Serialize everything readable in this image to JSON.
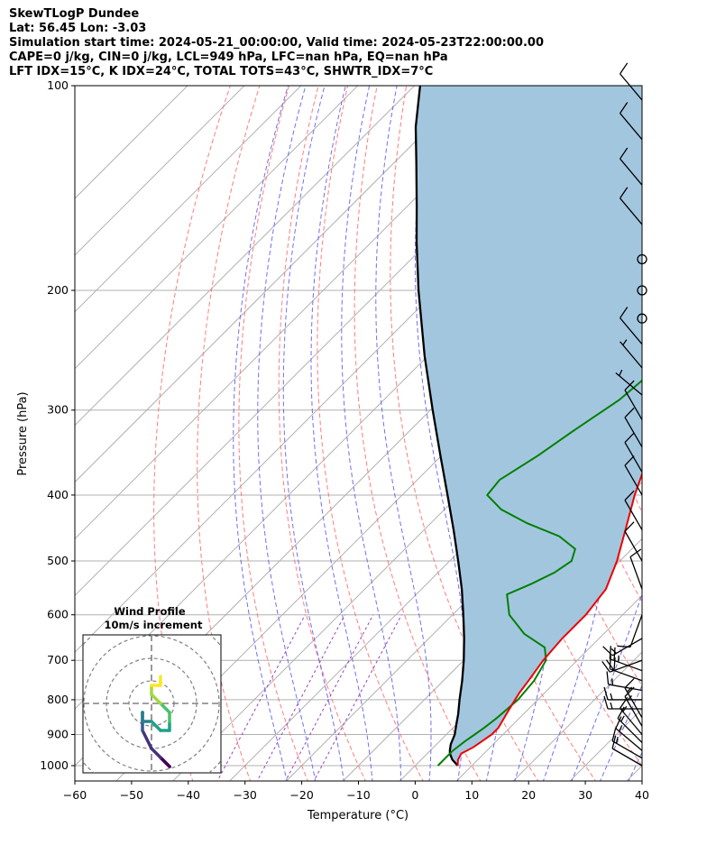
{
  "title_lines": [
    "SkewTLogP Dundee",
    "Lat: 56.45   Lon: -3.03",
    "Simulation start time: 2024-05-21_00:00:00, Valid time: 2024-05-23T22:00:00.00",
    "CAPE=0 j/kg, CIN=0 j/kg, LCL=949 hPa, LFC=nan hPa, EQ=nan hPa",
    "LFT IDX=15°C, K IDX=24°C, TOTAL TOTS=43°C, SHWTR_IDX=7°C"
  ],
  "chart_data": {
    "type": "skewt",
    "xlabel": "Temperature (°C)",
    "ylabel": "Pressure (hPa)",
    "xlim": [
      -60,
      40
    ],
    "ylim": [
      1050,
      100
    ],
    "xticks": [
      -60,
      -50,
      -40,
      -30,
      -20,
      -10,
      0,
      10,
      20,
      30,
      40
    ],
    "xtick_labels": [
      "−60",
      "−50",
      "−40",
      "−30",
      "−20",
      "−10",
      "0",
      "10",
      "20",
      "30",
      "40"
    ],
    "yticks": [
      1000,
      900,
      800,
      700,
      600,
      500,
      400,
      300,
      200,
      100
    ],
    "ytick_labels": [
      "1000",
      "900",
      "800",
      "700",
      "600",
      "500",
      "400",
      "300",
      "200",
      "100"
    ],
    "scale": "log-p",
    "grid": true,
    "colors": {
      "temperature": "#ee0000",
      "dewpoint": "#008000",
      "parcel": "#000000",
      "shade": "#a3c6df",
      "dry_adiabat": "#ff6f6f",
      "moist_adiabat": "#6060f0",
      "mixing_ratio": "#9a40c0",
      "isotherm": "#aaaaaa"
    },
    "temperature": {
      "p": [
        1000,
        980,
        960,
        940,
        920,
        900,
        880,
        860,
        840,
        820,
        800,
        780,
        750,
        700,
        650,
        600,
        550,
        500,
        450,
        400,
        350,
        300,
        270,
        250,
        230,
        210,
        200,
        180,
        160,
        140,
        120,
        100
      ],
      "t": [
        7.5,
        6.5,
        6.0,
        7.0,
        7.5,
        8.0,
        8.0,
        7.5,
        7.0,
        6.5,
        6.0,
        5.5,
        5.0,
        4.0,
        3.5,
        3.5,
        2.5,
        -0.5,
        -4.5,
        -9.0,
        -13.5,
        -18.5,
        -22.0,
        -22.5,
        -24.5,
        -27.5,
        -28.5,
        -29.5,
        -31.5,
        -33.5,
        -37.5,
        -40.5
      ]
    },
    "dewpoint": {
      "p": [
        1000,
        970,
        950,
        920,
        900,
        880,
        850,
        800,
        750,
        700,
        670,
        640,
        600,
        560,
        540,
        520,
        500,
        480,
        460,
        440,
        420,
        400,
        380,
        350,
        320,
        290,
        260,
        230,
        215,
        200,
        185,
        170,
        150,
        130,
        100
      ],
      "t": [
        4.0,
        4.0,
        4.0,
        4.5,
        5.0,
        5.5,
        6.0,
        6.5,
        6.0,
        4.5,
        2.0,
        -4.0,
        -10.0,
        -14.0,
        -11.5,
        -9.5,
        -8.5,
        -10.0,
        -15.0,
        -23.0,
        -30.0,
        -35.0,
        -35.5,
        -33.0,
        -31.0,
        -28.5,
        -27.5,
        -25.5,
        -24.5,
        -26.5,
        -31.0,
        -30.0,
        -31.0,
        -33.0,
        -38.0
      ]
    },
    "parcel": {
      "p": [
        1000,
        980,
        960,
        949,
        930,
        900,
        870,
        840,
        800,
        750,
        700,
        650,
        600,
        550,
        500,
        450,
        400,
        350,
        300,
        250,
        200,
        170,
        150,
        130,
        115,
        100
      ],
      "t": [
        7.5,
        5.5,
        4.0,
        3.4,
        2.5,
        1.5,
        0.0,
        -1.5,
        -3.8,
        -6.7,
        -10.0,
        -13.8,
        -18.1,
        -22.9,
        -28.5,
        -34.8,
        -42.0,
        -50.2,
        -59.6,
        -70.5,
        -83.2,
        -92.0,
        -98.5,
        -106.0,
        -112.5,
        -119.0
      ]
    },
    "wind_barbs": {
      "p": [
        1000,
        975,
        950,
        925,
        900,
        875,
        850,
        825,
        800,
        775,
        750,
        725,
        700,
        650,
        600,
        550,
        500,
        450,
        400,
        370,
        340,
        310,
        285,
        260,
        240,
        220,
        200,
        180,
        160,
        140,
        120,
        105
      ],
      "speed_kt": [
        12,
        15,
        15,
        15,
        15,
        15,
        15,
        15,
        15,
        15,
        20,
        25,
        20,
        15,
        10,
        10,
        10,
        10,
        10,
        10,
        10,
        10,
        5,
        5,
        10,
        0,
        0,
        0,
        10,
        10,
        10,
        10
      ],
      "direction_deg": [
        300,
        300,
        310,
        315,
        320,
        330,
        330,
        270,
        270,
        280,
        290,
        290,
        250,
        240,
        200,
        340,
        330,
        330,
        330,
        330,
        330,
        330,
        310,
        320,
        320,
        0,
        0,
        0,
        320,
        320,
        320,
        320
      ]
    },
    "inset": {
      "title_line1": "Wind Profile",
      "title_line2": "10m/s increment",
      "hodograph_u": [
        1,
        2,
        2,
        1,
        0,
        -1,
        -1,
        -1,
        -1,
        0,
        1,
        2,
        2,
        2,
        1,
        0,
        0,
        1,
        1
      ],
      "hodograph_v": [
        -6,
        -7,
        -7,
        -6,
        -5,
        -3,
        -1,
        -1,
        -2,
        -2,
        -3,
        -3,
        -2,
        -1,
        0,
        1,
        2,
        2,
        3
      ]
    }
  }
}
